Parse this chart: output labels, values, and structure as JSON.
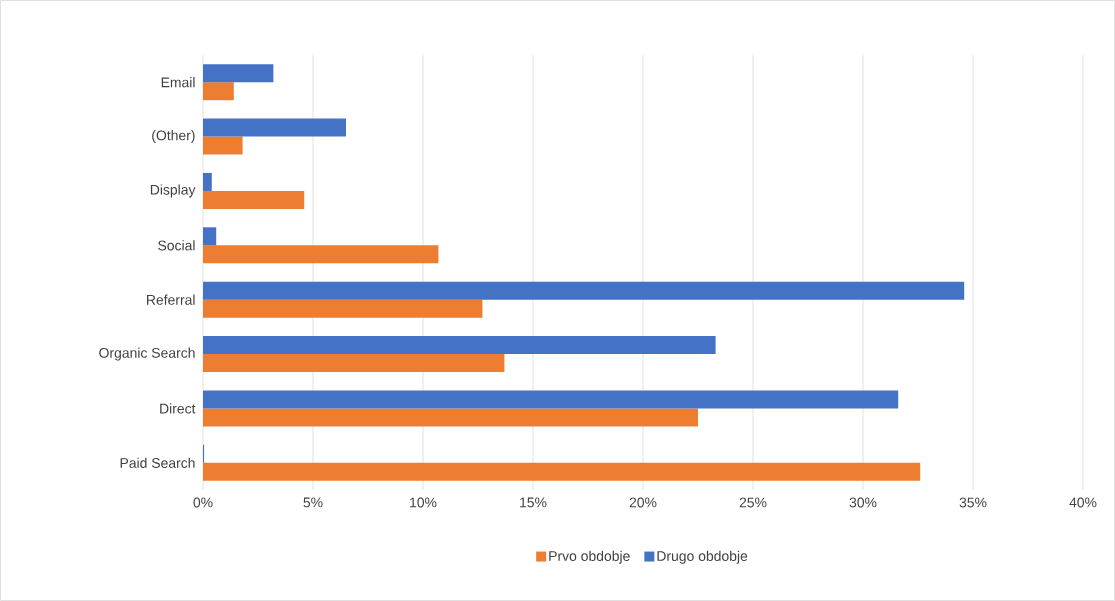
{
  "chart_data": {
    "type": "bar",
    "orientation": "horizontal",
    "categories": [
      "Email",
      "(Other)",
      "Display",
      "Social",
      "Referral",
      "Organic Search",
      "Direct",
      "Paid Search"
    ],
    "series": [
      {
        "name": "Prvo obdobje",
        "color": "#ed7d31",
        "values": [
          1.4,
          1.8,
          4.6,
          10.7,
          12.7,
          13.7,
          22.5,
          32.6
        ]
      },
      {
        "name": "Drugo obdobje",
        "color": "#4472c4",
        "values": [
          3.2,
          6.5,
          0.4,
          0.6,
          34.6,
          23.3,
          31.6,
          0.05
        ]
      }
    ],
    "xlim": [
      0,
      40
    ],
    "xticks": [
      {
        "value": 0,
        "label": "0%"
      },
      {
        "value": 5,
        "label": "5%"
      },
      {
        "value": 10,
        "label": "10%"
      },
      {
        "value": 15,
        "label": "15%"
      },
      {
        "value": 20,
        "label": "20%"
      },
      {
        "value": 25,
        "label": "25%"
      },
      {
        "value": 30,
        "label": "30%"
      },
      {
        "value": 35,
        "label": "35%"
      },
      {
        "value": 40,
        "label": "40%"
      }
    ],
    "grid": "x",
    "legend": "bottom"
  }
}
